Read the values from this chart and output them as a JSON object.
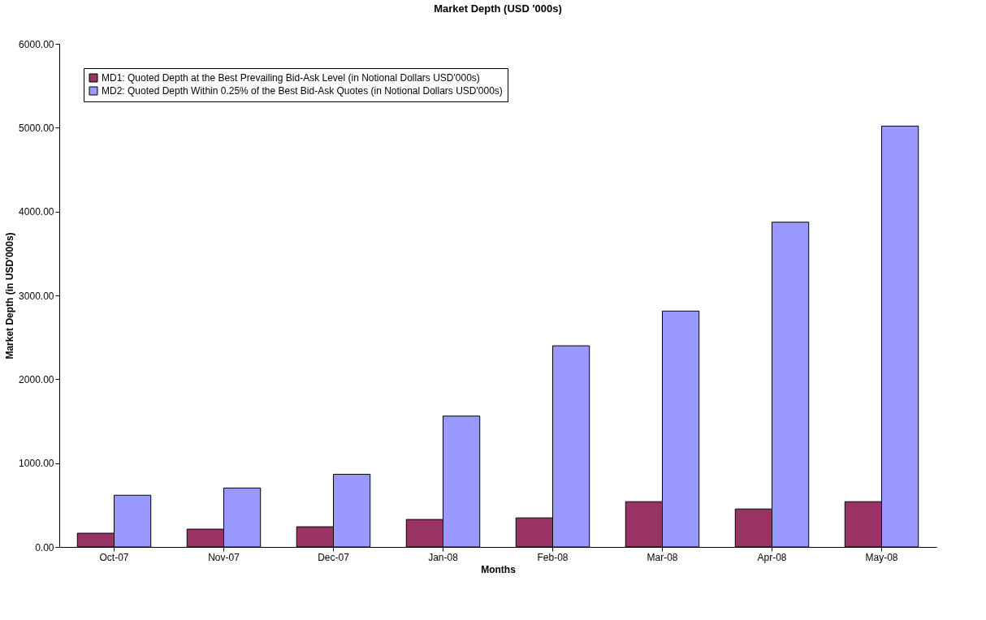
{
  "chart_data": {
    "type": "bar",
    "title": "Market Depth (USD '000s)",
    "xlabel": "Months",
    "ylabel": "Market Depth (in USD'000s)",
    "categories": [
      "Oct-07",
      "Nov-07",
      "Dec-07",
      "Jan-08",
      "Feb-08",
      "Mar-08",
      "Apr-08",
      "May-08"
    ],
    "series": [
      {
        "name": "MD1: Quoted Depth at the Best Prevailing Bid-Ask Level (in Notional Dollars USD'000s)",
        "color": "#993366",
        "values": [
          164,
          212,
          241,
          328,
          347,
          540,
          453,
          540
        ]
      },
      {
        "name": "MD2: Quoted Depth Within 0.25% of the Best Bid-Ask Quotes (in Notional Dollars USD'000s)",
        "color": "#9999ff",
        "values": [
          617,
          703,
          867,
          1561,
          2399,
          2813,
          3873,
          5019
        ]
      }
    ],
    "ylim": [
      0,
      6000
    ],
    "yticks": [
      {
        "value": 0,
        "label": "0.00"
      },
      {
        "value": 1000,
        "label": "1000.00"
      },
      {
        "value": 2000,
        "label": "2000.00"
      },
      {
        "value": 3000,
        "label": "3000.00"
      },
      {
        "value": 4000,
        "label": "4000.00"
      },
      {
        "value": 5000,
        "label": "5000.00"
      },
      {
        "value": 6000,
        "label": "6000.00"
      }
    ],
    "grid": false,
    "legend": "top left"
  }
}
